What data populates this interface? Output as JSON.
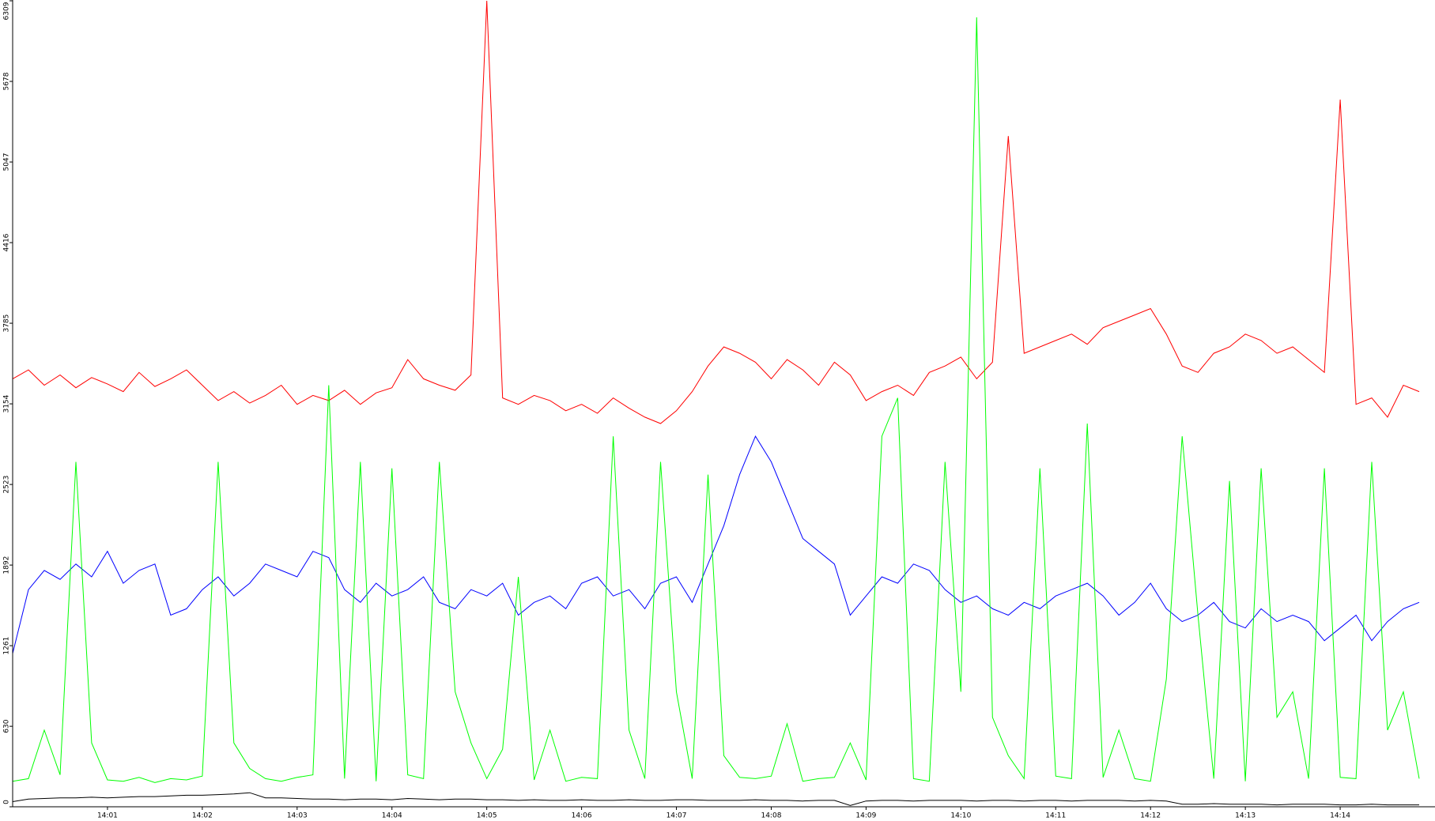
{
  "chart_data": {
    "type": "line",
    "categories": [
      null,
      null,
      null,
      null,
      null,
      null,
      "14:01",
      null,
      null,
      null,
      null,
      null,
      "14:02",
      null,
      null,
      null,
      null,
      null,
      "14:03",
      null,
      null,
      null,
      null,
      null,
      "14:04",
      null,
      null,
      null,
      null,
      null,
      "14:05",
      null,
      null,
      null,
      null,
      null,
      "14:06",
      null,
      null,
      null,
      null,
      null,
      "14:07",
      null,
      null,
      null,
      null,
      null,
      "14:08",
      null,
      null,
      null,
      null,
      null,
      "14:09",
      null,
      null,
      null,
      null,
      null,
      "14:10",
      null,
      null,
      null,
      null,
      null,
      "14:11",
      null,
      null,
      null,
      null,
      null,
      "14:12",
      null,
      null,
      null,
      null,
      null,
      "14:13",
      null,
      null,
      null,
      null,
      null,
      "14:14",
      null,
      null,
      null,
      null,
      null
    ],
    "ylim": [
      0,
      6309
    ],
    "yticks": [
      0,
      630,
      1261,
      1892,
      2523,
      3154,
      3785,
      4416,
      5047,
      5678,
      6309
    ],
    "series": [
      {
        "color": "#ff0000",
        "values": [
          3350,
          3420,
          3300,
          3380,
          3280,
          3360,
          3310,
          3250,
          3400,
          3290,
          3350,
          3420,
          3300,
          3180,
          3250,
          3160,
          3220,
          3300,
          3150,
          3220,
          3180,
          3260,
          3150,
          3240,
          3280,
          3500,
          3350,
          3300,
          3260,
          3380,
          6309,
          3200,
          3150,
          3220,
          3180,
          3100,
          3150,
          3080,
          3200,
          3120,
          3050,
          3000,
          3100,
          3250,
          3450,
          3600,
          3550,
          3480,
          3350,
          3500,
          3420,
          3300,
          3480,
          3380,
          3180,
          3250,
          3300,
          3220,
          3400,
          3450,
          3520,
          3350,
          3480,
          5250,
          3550,
          3600,
          3650,
          3700,
          3620,
          3750,
          3800,
          3850,
          3900,
          3700,
          3450,
          3400,
          3550,
          3600,
          3700,
          3650,
          3550,
          3600,
          3500,
          3400,
          5536,
          3150,
          3200,
          3050,
          3300,
          3250
        ]
      },
      {
        "color": "#0000ff",
        "values": [
          1200,
          1700,
          1850,
          1780,
          1900,
          1800,
          2000,
          1750,
          1850,
          1900,
          1500,
          1550,
          1700,
          1800,
          1650,
          1750,
          1900,
          1850,
          1800,
          2000,
          1950,
          1700,
          1600,
          1750,
          1650,
          1700,
          1800,
          1600,
          1550,
          1700,
          1650,
          1750,
          1500,
          1600,
          1650,
          1550,
          1750,
          1800,
          1650,
          1700,
          1550,
          1750,
          1800,
          1600,
          1900,
          2200,
          2600,
          2900,
          2700,
          2400,
          2100,
          2000,
          1900,
          1500,
          1650,
          1800,
          1750,
          1900,
          1850,
          1700,
          1600,
          1650,
          1550,
          1500,
          1600,
          1550,
          1650,
          1700,
          1750,
          1650,
          1500,
          1600,
          1750,
          1550,
          1450,
          1500,
          1600,
          1450,
          1400,
          1550,
          1450,
          1500,
          1450,
          1300,
          1400,
          1500,
          1300,
          1450,
          1550,
          1600
        ]
      },
      {
        "color": "#00ff00",
        "values": [
          200,
          220,
          600,
          250,
          2700,
          500,
          210,
          200,
          230,
          190,
          220,
          210,
          240,
          2700,
          500,
          300,
          220,
          200,
          230,
          250,
          3300,
          220,
          2700,
          200,
          2650,
          250,
          220,
          2700,
          900,
          500,
          220,
          450,
          1800,
          210,
          600,
          200,
          230,
          220,
          2900,
          600,
          220,
          2700,
          900,
          220,
          2600,
          400,
          230,
          220,
          240,
          650,
          200,
          220,
          230,
          500,
          210,
          2900,
          3200,
          220,
          200,
          2700,
          900,
          6180,
          700,
          400,
          220,
          2650,
          240,
          220,
          3000,
          230,
          600,
          220,
          200,
          1000,
          2900,
          1500,
          220,
          2550,
          200,
          2650,
          700,
          900,
          220,
          2650,
          230,
          220,
          2700,
          600,
          900,
          220
        ]
      },
      {
        "color": "#000000",
        "values": [
          40,
          60,
          65,
          70,
          70,
          75,
          70,
          75,
          80,
          80,
          85,
          90,
          90,
          95,
          100,
          110,
          70,
          70,
          65,
          60,
          60,
          55,
          60,
          60,
          55,
          65,
          60,
          55,
          60,
          60,
          55,
          55,
          50,
          55,
          50,
          50,
          55,
          50,
          50,
          55,
          50,
          50,
          55,
          55,
          50,
          50,
          50,
          55,
          50,
          50,
          45,
          50,
          50,
          10,
          45,
          50,
          50,
          45,
          50,
          50,
          50,
          45,
          50,
          50,
          45,
          50,
          50,
          45,
          50,
          50,
          50,
          45,
          50,
          45,
          20,
          20,
          25,
          20,
          20,
          20,
          15,
          20,
          20,
          20,
          15,
          15,
          20,
          15,
          15,
          15
        ]
      }
    ]
  }
}
